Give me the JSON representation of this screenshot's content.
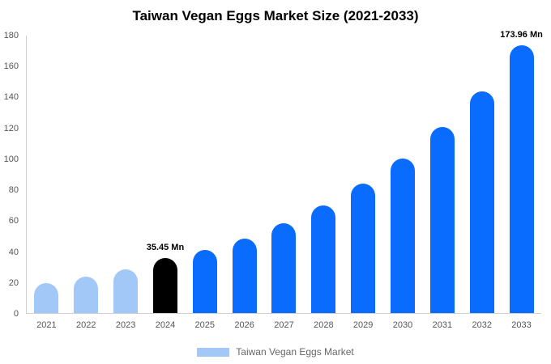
{
  "title": "Taiwan Vegan Eggs Market Size (2021-2033)",
  "legend": {
    "label": "Taiwan Vegan Eggs Market",
    "swatch_color": "#a2c8f7"
  },
  "colors": {
    "historical": "#a2c8f7",
    "base_year": "#000000",
    "forecast": "#0a6cff",
    "axis": "#cfcfcf",
    "tick_text": "#555555"
  },
  "chart_data": {
    "type": "bar",
    "title": "Taiwan Vegan Eggs Market Size (2021-2033)",
    "xlabel": "",
    "ylabel": "",
    "categories": [
      "2021",
      "2022",
      "2023",
      "2024",
      "2025",
      "2026",
      "2027",
      "2028",
      "2029",
      "2030",
      "2031",
      "2032",
      "2033"
    ],
    "values": [
      19.5,
      23.5,
      28.5,
      35.45,
      41,
      48.5,
      58,
      70,
      84,
      100.5,
      120.5,
      144,
      173.96
    ],
    "bar_colors": [
      "#a2c8f7",
      "#a2c8f7",
      "#a2c8f7",
      "#000000",
      "#0a6cff",
      "#0a6cff",
      "#0a6cff",
      "#0a6cff",
      "#0a6cff",
      "#0a6cff",
      "#0a6cff",
      "#0a6cff",
      "#0a6cff"
    ],
    "ylim": [
      0,
      180
    ],
    "ytick_step": 20,
    "grid": false,
    "legend_position": "bottom",
    "annotations": [
      {
        "index": 3,
        "category": "2024",
        "text": "35.45 Mn"
      },
      {
        "index": 12,
        "category": "2033",
        "text": "173.96 Mn"
      }
    ]
  }
}
